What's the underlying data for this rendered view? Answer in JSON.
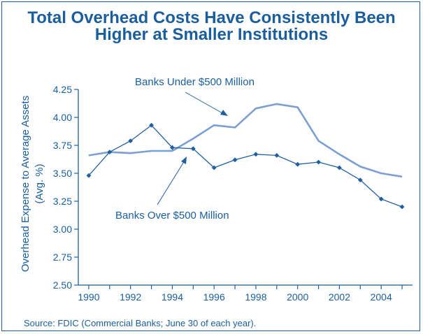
{
  "chart_data": {
    "type": "line",
    "title_line1": "Total Overhead Costs Have Consistently Been",
    "title_line2": "Higher at Smaller Institutions",
    "ylabel_line1": "Overhead Expense to Average Assets",
    "ylabel_line2": "(Avg. %)",
    "xlabel": "",
    "ylim": [
      2.5,
      4.25
    ],
    "xlim": [
      1989.5,
      2005.5
    ],
    "yticks": [
      "2.50",
      "2.75",
      "3.00",
      "3.25",
      "3.50",
      "3.75",
      "4.00",
      "4.25"
    ],
    "xticks": [
      "1990",
      "1992",
      "1994",
      "1996",
      "1998",
      "2000",
      "2002",
      "2004"
    ],
    "x": [
      1990,
      1991,
      1992,
      1993,
      1994,
      1995,
      1996,
      1997,
      1998,
      1999,
      2000,
      2001,
      2002,
      2003,
      2004,
      2005
    ],
    "series": [
      {
        "name": "Banks Under $500 Million",
        "color": "#7b9fd1",
        "marker": "none",
        "values": [
          3.66,
          3.69,
          3.68,
          3.7,
          3.7,
          3.81,
          3.93,
          3.91,
          4.08,
          4.12,
          4.09,
          3.79,
          3.67,
          3.56,
          3.5,
          3.47
        ]
      },
      {
        "name": "Banks Over $500 Million",
        "color": "#1f5fa0",
        "marker": "diamond",
        "values": [
          3.48,
          3.69,
          3.79,
          3.93,
          3.73,
          3.72,
          3.55,
          3.62,
          3.67,
          3.66,
          3.58,
          3.6,
          3.55,
          3.44,
          3.27,
          3.2
        ]
      }
    ],
    "annotations": {
      "under_label": "Banks Under $500 Million",
      "over_label": "Banks Over $500 Million"
    },
    "grid": false,
    "source": "Source: FDIC (Commercial Banks; June 30 of each year)."
  }
}
